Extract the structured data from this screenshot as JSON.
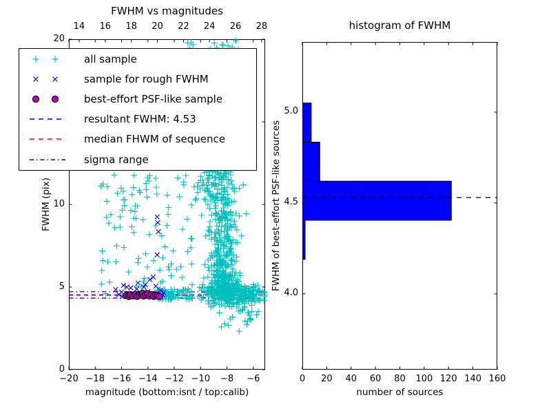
{
  "colors": {
    "cyan": "#00bfbf",
    "blue": "#0000ff",
    "magenta": "#bf00bf",
    "red": "#ff0000",
    "black": "#000000",
    "background": "#ffffff"
  },
  "left_plot": {
    "title": "FWHM vs magnitudes",
    "xlabel": "magnitude (bottom:isnt / top:calib)",
    "ylabel": "FWHM (pix)",
    "xlim": [
      -20,
      -5.1
    ],
    "top_xlim": [
      13.21,
      28.27
    ],
    "ylim": [
      0,
      20
    ],
    "x_ticks": {
      "values": [
        -20,
        -18,
        -16,
        -14,
        -12,
        -10,
        -8,
        -6
      ],
      "labels": [
        "−20",
        "−18",
        "−16",
        "−14",
        "−12",
        "−10",
        "−8",
        "−6"
      ]
    },
    "top_ticks": {
      "values": [
        14,
        16,
        18,
        20,
        22,
        24,
        26,
        28
      ],
      "labels": [
        "14",
        "16",
        "18",
        "20",
        "22",
        "24",
        "26",
        "28"
      ]
    },
    "y_ticks": {
      "values": [
        0,
        5,
        10,
        15,
        20
      ],
      "labels": [
        "0",
        "5",
        "10",
        "15",
        "20"
      ]
    }
  },
  "right_plot": {
    "title": "histogram of FWHM",
    "xlabel": "number of sources",
    "ylabel": "FWHM of best-effort PSF-like sources",
    "xlim": [
      0,
      160
    ],
    "ylim": [
      3.583,
      5.386
    ],
    "x_ticks": {
      "values": [
        0,
        20,
        40,
        60,
        80,
        100,
        120,
        140,
        160
      ],
      "labels": [
        "0",
        "20",
        "40",
        "60",
        "80",
        "100",
        "120",
        "140",
        "160"
      ]
    },
    "y_ticks": {
      "values": [
        4.0,
        4.5,
        5.0
      ],
      "labels": [
        "4.0",
        "4.5",
        "5.0"
      ]
    }
  },
  "legend": {
    "items": [
      {
        "type": "scatter",
        "marker": "plus",
        "color": "#00bfbf",
        "label": "all sample"
      },
      {
        "type": "scatter",
        "marker": "cross",
        "color": "#0000ff",
        "label": "sample for rough FWHM"
      },
      {
        "type": "scatter",
        "marker": "circle",
        "color": "#bf00bf",
        "edge": "#000000",
        "label": "best-effort PSF-like sample"
      },
      {
        "type": "line",
        "style": "dashed",
        "color": "#0000ff",
        "label": "resultant FWHM: 4.53"
      },
      {
        "type": "line",
        "style": "dashed",
        "color": "#ff0000",
        "label": "median FHWM of sequence"
      },
      {
        "type": "line",
        "style": "dashdot",
        "color": "#0000ff",
        "label": "sigma range"
      }
    ]
  },
  "chart_data": [
    {
      "type": "scatter",
      "title": "FWHM vs magnitudes",
      "xlabel": "magnitude (bottom:isnt / top:calib)",
      "ylabel": "FWHM (pix)",
      "xlim": [
        -20,
        -5.1
      ],
      "ylim": [
        0,
        20
      ],
      "series": [
        {
          "name": "all sample",
          "marker": "plus",
          "color": "#00bfbf",
          "clusters": [
            {
              "type": "uniform",
              "n": 14,
              "x": [
                -11.2,
                -6.8
              ],
              "y": [
                19.3,
                19.95
              ]
            },
            {
              "type": "uniform",
              "n": 90,
              "x": [
                -17.6,
                -10.0
              ],
              "y": [
                4.9,
                11.9
              ]
            },
            {
              "type": "gauss",
              "n": 60,
              "x_mu": -9.0,
              "x_sd": 0.8,
              "y_mu": 11.3,
              "y_sd": 0.55
            },
            {
              "type": "column",
              "n": 500,
              "x_mu": -8.35,
              "x_sd": 0.55,
              "y": [
                4.65,
                12.2
              ],
              "pow": 2.2
            },
            {
              "type": "gauss",
              "n": 270,
              "x_mu": -7.5,
              "x_sd": 1.15,
              "y_mu": 4.6,
              "y_sd": 0.33,
              "x_clip": [
                -11.3,
                -5.15
              ]
            },
            {
              "type": "uniform",
              "n": 70,
              "x": [
                -13.3,
                -10.6
              ],
              "y": [
                4.25,
                4.9
              ]
            },
            {
              "type": "gauss",
              "n": 45,
              "x_mu": -6.6,
              "x_sd": 0.6,
              "y_mu": 4.0,
              "y_sd": 0.55,
              "x_clip": [
                -8.5,
                -5.15
              ]
            },
            {
              "type": "uniform",
              "n": 16,
              "x": [
                -10.8,
                -5.3
              ],
              "y": [
                2.3,
                4.25
              ]
            }
          ],
          "points": [
            [
              -17.5,
              6.0
            ],
            [
              -17.2,
              4.6
            ],
            [
              -16.9,
              5.3
            ]
          ]
        },
        {
          "name": "sample for rough FWHM",
          "marker": "cross",
          "color": "#0000ff",
          "points": [
            [
              -16.45,
              4.85
            ],
            [
              -16.2,
              4.55
            ],
            [
              -16.0,
              4.7
            ],
            [
              -15.85,
              5.1
            ],
            [
              -15.7,
              4.45
            ],
            [
              -15.6,
              5.0
            ],
            [
              -15.5,
              4.6
            ],
            [
              -15.3,
              4.95
            ],
            [
              -15.1,
              4.5
            ],
            [
              -14.9,
              4.4
            ],
            [
              -14.85,
              4.88
            ],
            [
              -14.75,
              5.25
            ],
            [
              -14.6,
              4.65
            ],
            [
              -14.45,
              4.5
            ],
            [
              -14.3,
              5.0
            ],
            [
              -14.2,
              5.15
            ],
            [
              -14.15,
              4.42
            ],
            [
              -14.0,
              4.72
            ],
            [
              -13.85,
              5.45
            ],
            [
              -13.75,
              4.38
            ],
            [
              -13.7,
              4.55
            ],
            [
              -13.6,
              5.6
            ],
            [
              -13.55,
              4.48
            ],
            [
              -13.4,
              5.05
            ],
            [
              -13.3,
              4.62
            ],
            [
              -13.2,
              4.4
            ],
            [
              -13.05,
              4.8
            ],
            [
              -12.9,
              4.52
            ],
            [
              -12.8,
              4.66
            ],
            [
              -15.95,
              4.42
            ],
            [
              -13.3,
              9.25
            ],
            [
              -13.25,
              8.9
            ],
            [
              -13.2,
              8.35
            ],
            [
              -13.3,
              6.95
            ]
          ]
        },
        {
          "name": "best-effort PSF-like sample",
          "marker": "circle",
          "color": "#bf00bf",
          "edge": "#000000",
          "points": [
            [
              -15.62,
              4.5
            ],
            [
              -15.45,
              4.43
            ],
            [
              -15.35,
              4.53
            ],
            [
              -15.15,
              4.47
            ],
            [
              -14.97,
              4.55
            ],
            [
              -14.82,
              4.44
            ],
            [
              -14.65,
              4.5
            ],
            [
              -14.5,
              4.57
            ],
            [
              -14.4,
              4.62
            ],
            [
              -14.33,
              4.46
            ],
            [
              -14.18,
              4.52
            ],
            [
              -14.03,
              4.6
            ],
            [
              -13.88,
              4.47
            ],
            [
              -13.72,
              4.54
            ],
            [
              -13.57,
              4.44
            ],
            [
              -13.42,
              4.52
            ],
            [
              -13.28,
              4.49
            ],
            [
              -13.12,
              4.42
            ]
          ]
        }
      ],
      "lines": [
        {
          "name": "resultant FWHM: 4.53",
          "y": 4.53,
          "style": "dashed",
          "color": "#0000ff"
        },
        {
          "name": "median FHWM of sequence",
          "y": 4.5,
          "style": "dashed",
          "color": "#ff0000"
        },
        {
          "name": "sigma range upper",
          "y": 4.72,
          "style": "dashdot",
          "color": "#0000ff"
        },
        {
          "name": "sigma range lower",
          "y": 4.33,
          "style": "dashdot",
          "color": "#0000ff"
        }
      ],
      "resultant_fwhm": 4.53
    },
    {
      "type": "bar",
      "orientation": "horizontal",
      "title": "histogram of FWHM",
      "xlabel": "number of sources",
      "ylabel": "FWHM of best-effort PSF-like sources",
      "xlim": [
        0,
        160
      ],
      "ylim": [
        3.583,
        5.386
      ],
      "bin_edges": [
        4.19,
        4.405,
        4.62,
        4.835,
        5.05
      ],
      "counts": [
        2,
        122,
        14,
        7
      ],
      "bar_color": "#0000ff",
      "bar_edge": "#000000",
      "dashed_line": {
        "value": 4.53,
        "style": "dashed",
        "color": "#000000"
      }
    }
  ]
}
